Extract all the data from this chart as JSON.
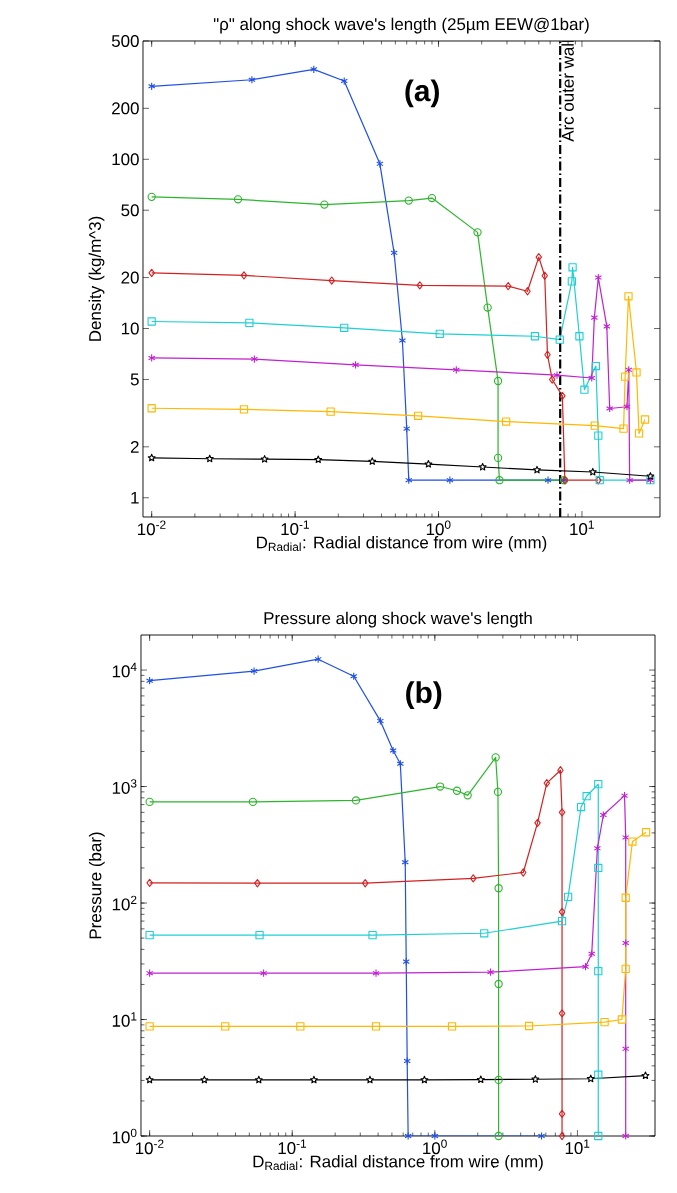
{
  "chart_data": [
    {
      "type": "line",
      "title": "\"ρ\" along shock wave's length (25µm EEW@1bar)",
      "xlabel": "D$_{Radial}$: Radial distance from wire (mm)",
      "ylabel": "Density (kg/m^3)",
      "log": "xy",
      "line_style": "solid",
      "xlim": [
        0.0087,
        35
      ],
      "ylim": [
        0.77,
        500
      ],
      "xticks": [
        {
          "value": 0.01,
          "label": "10$^{-2}$"
        },
        {
          "value": 0.1,
          "label": "10$^{-1}$"
        },
        {
          "value": 1,
          "label": "10$^{0}$"
        },
        {
          "value": 10,
          "label": "10$^{1}$"
        }
      ],
      "yticks": [
        1,
        2,
        5,
        10,
        20,
        50,
        100,
        200,
        500
      ],
      "annotations": [
        "(a)"
      ],
      "ref_lines": [
        {
          "axis": "x",
          "value": 7.05,
          "label": "Arc outer wall",
          "color": "#000000",
          "line_style": "dashdot"
        }
      ],
      "series": [
        {
          "color": "#1f4fe6",
          "marker": "cross",
          "x": [
            0.01,
            0.05,
            0.135,
            0.22,
            0.39,
            0.49,
            0.56,
            0.6,
            0.62,
            1.2,
            5.8,
            7.5
          ],
          "values": [
            270,
            295,
            340,
            290,
            94,
            28,
            8.5,
            2.56,
            1.27,
            1.27,
            1.27,
            1.27
          ]
        },
        {
          "color": "#2db52d",
          "marker": "circle",
          "x": [
            0.01,
            0.04,
            0.16,
            0.62,
            0.9,
            1.87,
            2.2,
            2.6,
            2.6,
            2.66,
            7.5
          ],
          "values": [
            60,
            58,
            54,
            57,
            59,
            37,
            13.3,
            4.9,
            1.72,
            1.27,
            1.27
          ]
        },
        {
          "color": "#d42020",
          "marker": "diamond",
          "x": [
            0.01,
            0.044,
            0.18,
            0.74,
            3.06,
            4.17,
            5.0,
            5.5,
            5.75,
            6.2,
            7.3,
            7.6,
            13
          ],
          "values": [
            21.3,
            20.6,
            19.2,
            18,
            17.8,
            16.6,
            26.4,
            20.5,
            7.0,
            5,
            4,
            1.27,
            1.27
          ]
        },
        {
          "color": "#1ecfd6",
          "marker": "square",
          "x": [
            0.01,
            0.048,
            0.22,
            1.02,
            4.7,
            7.0,
            8.5,
            8.6,
            9.6,
            10.4,
            12.5,
            13,
            13.3,
            30
          ],
          "values": [
            11,
            10.8,
            10.1,
            9.3,
            9.0,
            8.6,
            19,
            23,
            9,
            4.35,
            6,
            2.33,
            1.27,
            1.27
          ]
        },
        {
          "color": "#c020d0",
          "marker": "cross",
          "x": [
            0.01,
            0.052,
            0.264,
            1.33,
            6.7,
            11.7,
            12.2,
            13,
            14.9,
            15.6,
            20.6,
            21.2,
            21.5,
            30
          ],
          "values": [
            6.7,
            6.6,
            6.1,
            5.7,
            5.3,
            5.1,
            11.6,
            20,
            10.3,
            3.37,
            3.45,
            5.7,
            1.27,
            1.27
          ]
        },
        {
          "color": "#ffb800",
          "marker": "square",
          "x": [
            0.01,
            0.044,
            0.177,
            0.72,
            2.96,
            12.3,
            19.5,
            20,
            21.1,
            24,
            25,
            27.5
          ],
          "values": [
            3.38,
            3.33,
            3.23,
            3.05,
            2.82,
            2.67,
            2.56,
            5.2,
            15.5,
            5.5,
            2.4,
            2.9
          ]
        },
        {
          "color": "#000000",
          "marker": "star",
          "x": [
            0.01,
            0.0254,
            0.0613,
            0.145,
            0.345,
            0.85,
            2.03,
            4.86,
            11.9,
            30
          ],
          "values": [
            1.72,
            1.7,
            1.69,
            1.68,
            1.64,
            1.58,
            1.52,
            1.46,
            1.42,
            1.34
          ]
        }
      ]
    },
    {
      "type": "line",
      "title": "Pressure along shock wave's length",
      "xlabel": "D$_{Radial}$: Radial distance from wire (mm)",
      "ylabel": "Pressure (bar)",
      "log": "xy",
      "line_style": "solid",
      "xlim": [
        0.0087,
        35
      ],
      "ylim": [
        1,
        20000
      ],
      "xticks": [
        {
          "value": 0.01,
          "label": "10$^{-2}$"
        },
        {
          "value": 0.1,
          "label": "10$^{-1}$"
        },
        {
          "value": 1,
          "label": "10$^{0}$"
        },
        {
          "value": 10,
          "label": "10$^{1}$"
        }
      ],
      "yticks": [
        {
          "value": 1,
          "label": "10$^{0}$"
        },
        {
          "value": 10,
          "label": "10$^{1}$"
        },
        {
          "value": 100,
          "label": "10$^{2}$"
        },
        {
          "value": 1000,
          "label": "10$^{3}$"
        },
        {
          "value": 10000,
          "label": "10$^{4}$"
        }
      ],
      "annotations": [
        "(b)"
      ],
      "series": [
        {
          "color": "#1f4fe6",
          "marker": "cross",
          "x": [
            0.01,
            0.054,
            0.152,
            0.27,
            0.415,
            0.51,
            0.573,
            0.62,
            0.63,
            0.64,
            0.65,
            1.0,
            5.6
          ],
          "values": [
            8100,
            9800,
            12400,
            8850,
            3660,
            2040,
            1570,
            224,
            31.4,
            4.4,
            1,
            1,
            1
          ]
        },
        {
          "color": "#2db52d",
          "marker": "circle",
          "x": [
            0.01,
            0.053,
            0.28,
            1.09,
            1.43,
            1.7,
            2.67,
            2.77,
            2.8,
            2.8,
            2.8,
            2.8
          ],
          "values": [
            738,
            738,
            760,
            1000,
            920,
            840,
            1780,
            900,
            134,
            20.2,
            3.03,
            1
          ]
        },
        {
          "color": "#d42020",
          "marker": "diamond",
          "x": [
            0.01,
            0.057,
            0.325,
            1.86,
            4.17,
            5.25,
            6.1,
            7.6,
            7.8,
            7.8,
            7.8,
            7.8,
            7.8
          ],
          "values": [
            149,
            148,
            148,
            163,
            183,
            487,
            1070,
            1380,
            600,
            84,
            11.3,
            1.55,
            1
          ]
        },
        {
          "color": "#1ecfd6",
          "marker": "square",
          "x": [
            0.01,
            0.059,
            0.366,
            2.22,
            7.8,
            8.6,
            10.6,
            11.6,
            14,
            14,
            14,
            14,
            14
          ],
          "values": [
            53,
            53,
            53,
            55,
            70,
            113,
            667,
            826,
            1050,
            200,
            26,
            3.36,
            1
          ]
        },
        {
          "color": "#c020d0",
          "marker": "cross",
          "x": [
            0.01,
            0.063,
            0.387,
            2.46,
            11.4,
            12.6,
            13.8,
            15.2,
            21.4,
            21.8,
            21.8,
            21.8,
            21.8
          ],
          "values": [
            25,
            25,
            25,
            25.5,
            28.4,
            36.7,
            295,
            570,
            835,
            366,
            45.4,
            5.6,
            1
          ]
        },
        {
          "color": "#ffb800",
          "marker": "square",
          "x": [
            0.01,
            0.0339,
            0.114,
            0.387,
            1.32,
            4.58,
            15.5,
            20.5,
            21.8,
            21.8,
            24.3,
            30.3
          ],
          "values": [
            8.74,
            8.74,
            8.74,
            8.74,
            8.74,
            8.8,
            9.5,
            10,
            27.2,
            111,
            337,
            405
          ]
        },
        {
          "color": "#000000",
          "marker": "star",
          "x": [
            0.01,
            0.0242,
            0.0583,
            0.142,
            0.351,
            0.845,
            2.1,
            5.07,
            12.4,
            30
          ],
          "values": [
            3.03,
            3.03,
            3.03,
            3.03,
            3.03,
            3.03,
            3.05,
            3.07,
            3.1,
            3.3
          ]
        }
      ]
    }
  ]
}
